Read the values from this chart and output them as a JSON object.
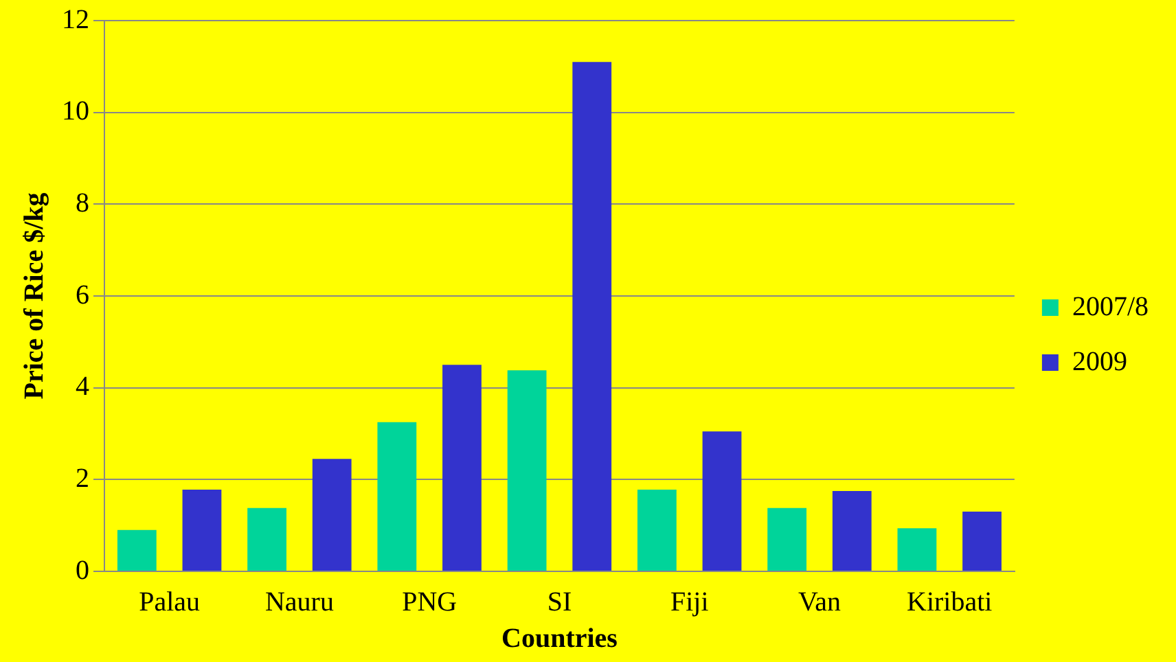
{
  "chart_data": {
    "type": "bar",
    "xlabel": "Countries",
    "ylabel": "Price of Rice $/kg",
    "categories": [
      "Palau",
      "Nauru",
      "PNG",
      "SI",
      "Fiji",
      "Van",
      "Kiribati"
    ],
    "series": [
      {
        "name": "2007/8",
        "color": "#00d49a",
        "values": [
          0.9,
          1.38,
          3.25,
          4.38,
          1.78,
          1.38,
          0.94
        ]
      },
      {
        "name": "2009",
        "color": "#3333cc",
        "values": [
          1.78,
          2.45,
          4.5,
          11.1,
          3.05,
          1.75,
          1.3
        ]
      }
    ],
    "ylim": [
      0,
      12
    ],
    "yticks": [
      0,
      2,
      4,
      6,
      8,
      10,
      12
    ],
    "grid": "y",
    "legend": "right"
  }
}
